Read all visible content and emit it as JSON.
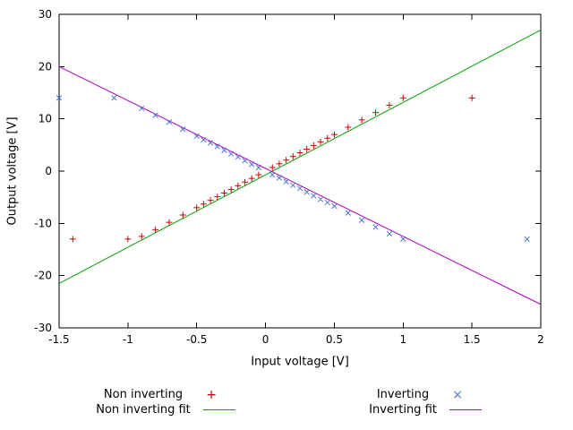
{
  "chart_data": {
    "type": "scatter",
    "title": "",
    "xlabel": "Input voltage [V]",
    "ylabel": "Output voltage [V]",
    "xlim": [
      -1.5,
      2
    ],
    "ylim": [
      -30,
      30
    ],
    "x_ticks": [
      -1.5,
      -1,
      -0.5,
      0,
      0.5,
      1,
      1.5,
      2
    ],
    "x_tick_labels": [
      "-1.5",
      "-1",
      "-0.5",
      "0",
      "0.5",
      "1",
      "1.5",
      "2"
    ],
    "y_ticks": [
      -30,
      -20,
      -10,
      0,
      10,
      20,
      30
    ],
    "y_tick_labels": [
      "-30",
      "-20",
      "-10",
      "0",
      "10",
      "20",
      "30"
    ],
    "grid": false,
    "legend_position": "below-center",
    "background": "#ffffff",
    "border_color": "#000000",
    "series": [
      {
        "name": "Non inverting",
        "type": "points",
        "marker": "plus",
        "color": "#cc0000",
        "points": [
          [
            -1.4,
            -13
          ],
          [
            -1.0,
            -13
          ],
          [
            -0.9,
            -12.5
          ],
          [
            -0.8,
            -11.2
          ],
          [
            -0.7,
            -9.8
          ],
          [
            -0.6,
            -8.4
          ],
          [
            -0.5,
            -7
          ],
          [
            -0.45,
            -6.3
          ],
          [
            -0.4,
            -5.6
          ],
          [
            -0.35,
            -4.9
          ],
          [
            -0.3,
            -4.2
          ],
          [
            -0.25,
            -3.5
          ],
          [
            -0.2,
            -2.8
          ],
          [
            -0.15,
            -2.1
          ],
          [
            -0.1,
            -1.4
          ],
          [
            -0.05,
            -0.7
          ],
          [
            0.05,
            0.7
          ],
          [
            0.1,
            1.4
          ],
          [
            0.15,
            2.1
          ],
          [
            0.2,
            2.8
          ],
          [
            0.25,
            3.5
          ],
          [
            0.3,
            4.2
          ],
          [
            0.35,
            4.9
          ],
          [
            0.4,
            5.6
          ],
          [
            0.45,
            6.3
          ],
          [
            0.5,
            7
          ],
          [
            0.6,
            8.4
          ],
          [
            0.7,
            9.8
          ],
          [
            0.8,
            11.2
          ],
          [
            0.9,
            12.6
          ],
          [
            1.0,
            14
          ],
          [
            1.5,
            14
          ]
        ]
      },
      {
        "name": "Inverting",
        "type": "points",
        "marker": "cross",
        "color": "#4878cf",
        "points": [
          [
            -1.5,
            14
          ],
          [
            -1.1,
            14
          ],
          [
            -0.9,
            12
          ],
          [
            -0.8,
            10.7
          ],
          [
            -0.7,
            9.4
          ],
          [
            -0.6,
            8
          ],
          [
            -0.5,
            6.7
          ],
          [
            -0.45,
            6
          ],
          [
            -0.4,
            5.4
          ],
          [
            -0.35,
            4.7
          ],
          [
            -0.3,
            4
          ],
          [
            -0.25,
            3.3
          ],
          [
            -0.2,
            2.7
          ],
          [
            -0.15,
            2
          ],
          [
            -0.1,
            1.3
          ],
          [
            -0.05,
            0.7
          ],
          [
            0.05,
            -0.7
          ],
          [
            0.1,
            -1.3
          ],
          [
            0.15,
            -2
          ],
          [
            0.2,
            -2.7
          ],
          [
            0.25,
            -3.3
          ],
          [
            0.3,
            -4
          ],
          [
            0.35,
            -4.7
          ],
          [
            0.4,
            -5.4
          ],
          [
            0.45,
            -6
          ],
          [
            0.5,
            -6.7
          ],
          [
            0.6,
            -8
          ],
          [
            0.7,
            -9.4
          ],
          [
            0.8,
            -10.7
          ],
          [
            0.9,
            -12
          ],
          [
            1.0,
            -13
          ],
          [
            1.9,
            -13
          ]
        ]
      },
      {
        "name": "Non inverting fit",
        "type": "line",
        "color": "#00a000",
        "slope": 13.86,
        "intercept": -0.71
      },
      {
        "name": "Inverting fit",
        "type": "line",
        "color": "#b000c0",
        "slope": -13.0,
        "intercept": 0.5
      }
    ]
  }
}
